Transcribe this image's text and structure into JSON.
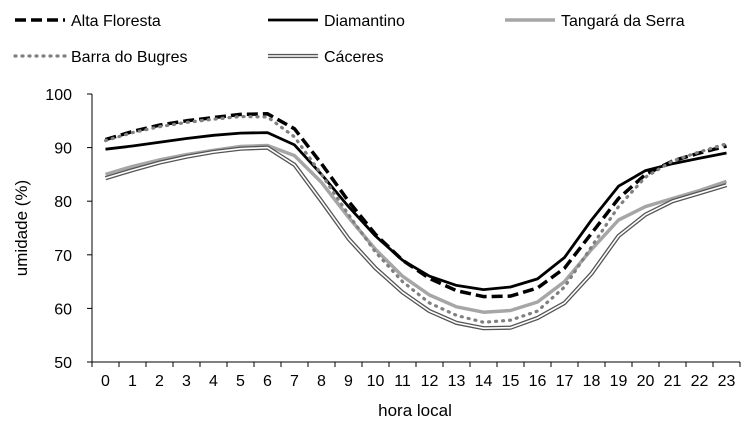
{
  "chart_data": {
    "type": "line",
    "title": "",
    "xlabel": "hora local",
    "ylabel": "umidade (%)",
    "ylim": [
      50,
      100
    ],
    "yticks": [
      50,
      60,
      70,
      80,
      90,
      100
    ],
    "grid": false,
    "legend_position": "top",
    "categories": [
      "0",
      "1",
      "2",
      "3",
      "4",
      "5",
      "6",
      "7",
      "8",
      "9",
      "10",
      "11",
      "12",
      "13",
      "14",
      "15",
      "16",
      "17",
      "18",
      "19",
      "20",
      "21",
      "22",
      "23"
    ],
    "series": [
      {
        "name": "Alta Floresta",
        "style": "dashed",
        "color": "#000000",
        "values": [
          91.5,
          93.0,
          94.2,
          95.0,
          95.6,
          96.2,
          96.3,
          93.5,
          87.0,
          80.0,
          73.8,
          69.0,
          65.6,
          63.3,
          62.2,
          62.3,
          63.8,
          67.5,
          74.0,
          80.5,
          85.0,
          87.5,
          89.0,
          90.3
        ]
      },
      {
        "name": "Diamantino",
        "style": "solid",
        "color": "#000000",
        "values": [
          89.7,
          90.3,
          91.0,
          91.7,
          92.3,
          92.7,
          92.8,
          90.5,
          85.0,
          79.0,
          73.5,
          69.0,
          66.0,
          64.3,
          63.5,
          64.0,
          65.5,
          69.5,
          76.5,
          82.8,
          85.7,
          87.0,
          88.0,
          89.0
        ]
      },
      {
        "name": "Tangará da Serra",
        "style": "solid-gray",
        "color": "#a6a6a6",
        "values": [
          85.0,
          86.5,
          87.7,
          88.7,
          89.5,
          90.2,
          90.4,
          88.5,
          83.5,
          77.0,
          71.0,
          66.0,
          62.5,
          60.3,
          59.3,
          59.6,
          61.2,
          65.0,
          71.0,
          76.5,
          79.0,
          80.5,
          82.0,
          83.7
        ]
      },
      {
        "name": "Barra do Bugres",
        "style": "dotted",
        "color": "#808080",
        "values": [
          91.3,
          92.8,
          93.9,
          94.7,
          95.3,
          95.8,
          95.7,
          92.0,
          85.0,
          77.5,
          70.5,
          65.0,
          61.0,
          58.7,
          57.4,
          57.8,
          59.5,
          64.0,
          71.5,
          79.0,
          84.5,
          87.5,
          89.2,
          90.7
        ]
      },
      {
        "name": "Cáceres",
        "style": "double",
        "color": "#444444",
        "values": [
          84.3,
          85.8,
          87.2,
          88.3,
          89.2,
          89.8,
          90.0,
          86.8,
          80.0,
          73.0,
          67.5,
          63.0,
          59.5,
          57.3,
          56.3,
          56.4,
          58.2,
          61.0,
          66.5,
          73.5,
          77.5,
          80.0,
          81.5,
          83.0
        ]
      }
    ]
  }
}
